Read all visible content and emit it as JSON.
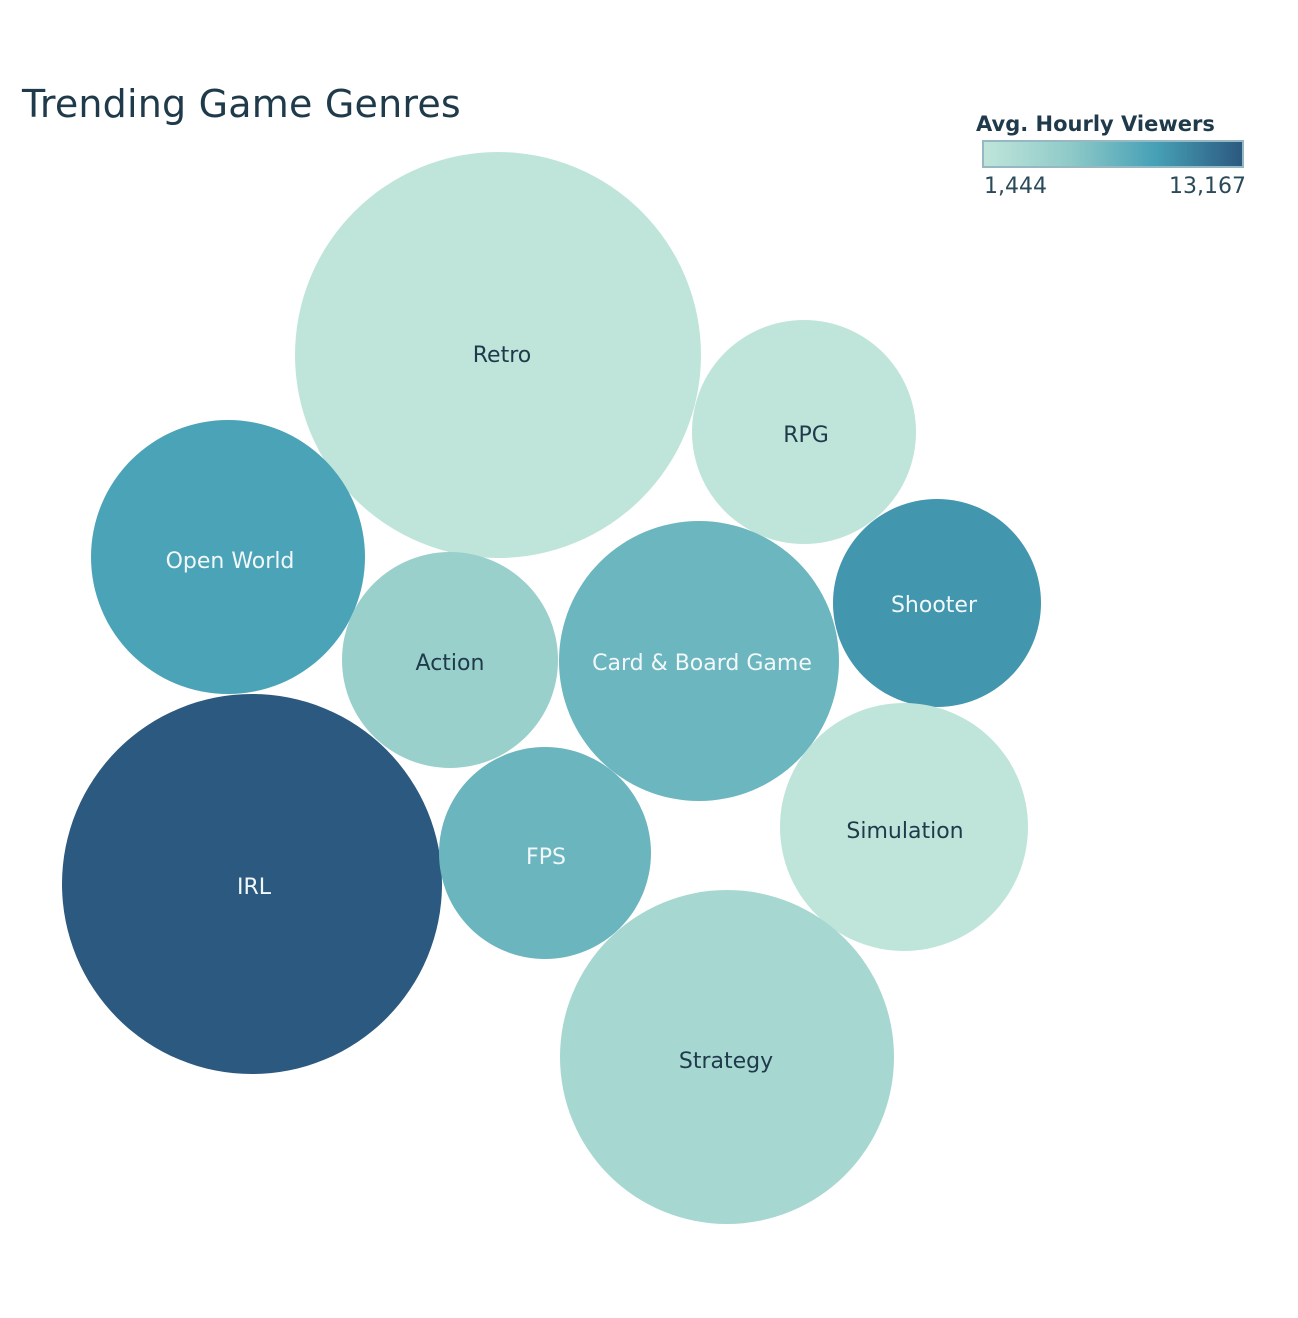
{
  "chart_data": {
    "type": "bubble",
    "title": "Trending Game Genres",
    "legend": {
      "title": "Avg. Hourly Viewers",
      "min_label": "1,444",
      "max_label": "13,167",
      "min": 1444,
      "max": 13167,
      "colors": [
        "#bfe5da",
        "#8fcac8",
        "#46a0b6",
        "#2c597f"
      ],
      "placement": "top-right"
    },
    "bubbles": [
      {
        "name": "Retro",
        "value": 1444
      },
      {
        "name": "RPG",
        "value": 1444
      },
      {
        "name": "Open World",
        "value": 9000
      },
      {
        "name": "Action",
        "value": 4500
      },
      {
        "name": "Card & Board Game",
        "value": 7200
      },
      {
        "name": "Shooter",
        "value": 9800
      },
      {
        "name": "IRL",
        "value": 13167
      },
      {
        "name": "FPS",
        "value": 7300
      },
      {
        "name": "Simulation",
        "value": 1444
      },
      {
        "name": "Strategy",
        "value": 3500
      }
    ]
  }
}
